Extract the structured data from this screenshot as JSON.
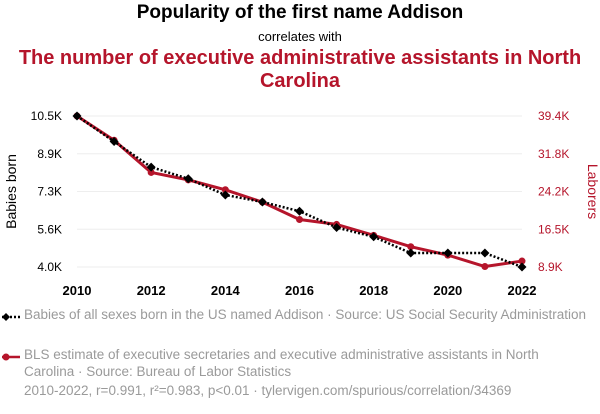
{
  "title": "Popularity of the first name Addison",
  "subtitle": "correlates with",
  "title2": "The number of executive administrative assistants in North Carolina",
  "colors": {
    "series1": "#000000",
    "series2": "#b5152b",
    "muted": "#9a9a9a"
  },
  "chart_data": {
    "type": "line",
    "x": [
      2010,
      2011,
      2012,
      2013,
      2014,
      2015,
      2016,
      2017,
      2018,
      2019,
      2020,
      2021,
      2022
    ],
    "x_ticks": [
      "2010",
      "2012",
      "2014",
      "2016",
      "2018",
      "2020",
      "2022"
    ],
    "ylabel_left": "Babies born",
    "ylabel_right": "Laborers",
    "y_left_ticks": [
      "10.5K",
      "8.9K",
      "7.3K",
      "5.6K",
      "4.0K"
    ],
    "y_left_range": [
      4000,
      10500
    ],
    "y_right_ticks": [
      "39.4K",
      "31.8K",
      "24.2K",
      "16.5K",
      "8.9K"
    ],
    "y_right_range": [
      8900,
      39400
    ],
    "grid": true,
    "series": [
      {
        "name": "Babies of all sexes born in the US named Addison · Source: US Social Security Administration",
        "axis": "left",
        "style": "dotted",
        "marker": "diamond",
        "values": [
          10500,
          9400,
          8300,
          7800,
          7100,
          6800,
          6400,
          5700,
          5300,
          4600,
          4600,
          4600,
          4000
        ]
      },
      {
        "name": "BLS estimate of executive secretaries and executive administrative assistants in North Carolina · Source: Bureau of Labor Statistics",
        "axis": "right",
        "style": "solid",
        "marker": "circle",
        "values": [
          39400,
          34500,
          28000,
          26500,
          24500,
          22000,
          18500,
          17500,
          15300,
          13000,
          11300,
          9000,
          10100
        ]
      }
    ]
  },
  "footer": "2010-2022, r=0.991, r²=0.983, p<0.01 · tylervigen.com/spurious/correlation/34369"
}
